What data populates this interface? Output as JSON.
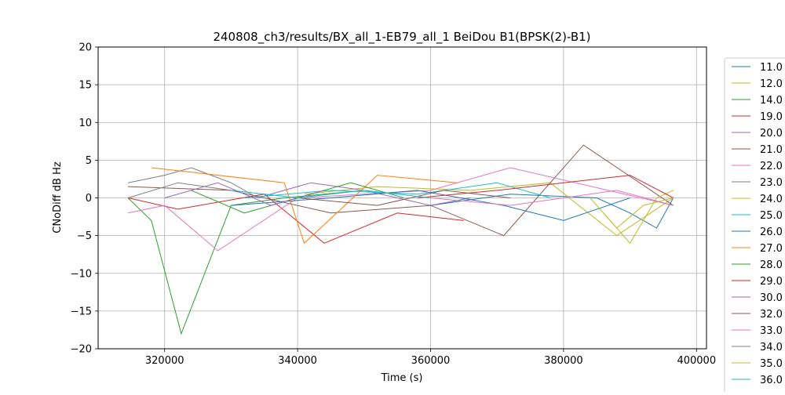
{
  "chart_data": {
    "type": "line",
    "title": "240808_ch3/results/BX_all_1-EB79_all_1 BeiDou B1(BPSK(2)-B1)",
    "xlabel": "Time (s)",
    "ylabel": "CNoDiff dB Hz",
    "xlim": [
      310000,
      401500
    ],
    "ylim": [
      -20,
      20
    ],
    "x_ticks": [
      320000,
      340000,
      360000,
      380000,
      400000
    ],
    "y_ticks": [
      -20,
      -15,
      -10,
      -5,
      0,
      5,
      10,
      15,
      20
    ],
    "grid": true,
    "legend_position": "right, outside plot",
    "series": [
      {
        "name": "11.0",
        "color": "#1f77b4",
        "x": [
          360000,
          372000,
          385000,
          390000,
          394000,
          396500
        ],
        "y": [
          -1,
          0.5,
          0,
          -2,
          -4,
          0
        ]
      },
      {
        "name": "12.0",
        "color": "#bcbd22",
        "x": [
          341000,
          352000,
          366000,
          378000,
          388000,
          396500
        ],
        "y": [
          0.5,
          1.5,
          1,
          2,
          -5,
          0
        ]
      },
      {
        "name": "14.0",
        "color": "#2ca02c",
        "x": [
          314500,
          318000,
          322500,
          330000,
          338000,
          350000
        ],
        "y": [
          0,
          -3,
          -18,
          -1,
          0,
          1
        ]
      },
      {
        "name": "19.0",
        "color": "#d62728",
        "x": [
          314500,
          322000,
          335000,
          344000,
          355000,
          365000
        ],
        "y": [
          0,
          -1.5,
          0.5,
          -6,
          -2,
          -3
        ]
      },
      {
        "name": "20.0",
        "color": "#9467bd",
        "x": [
          334000,
          342000,
          350000,
          360000,
          366000
        ],
        "y": [
          0,
          2,
          1,
          -1,
          0
        ]
      },
      {
        "name": "21.0",
        "color": "#8c564b",
        "x": [
          314500,
          330000,
          345000,
          360000,
          371000,
          383000,
          396500
        ],
        "y": [
          1.5,
          1,
          -2,
          -1,
          -5,
          7,
          -1
        ]
      },
      {
        "name": "22.0",
        "color": "#e377c2",
        "x": [
          314500,
          320000,
          328000,
          340000,
          360000,
          372000,
          396500
        ],
        "y": [
          -2,
          -1,
          -7,
          0,
          1,
          4,
          -1
        ]
      },
      {
        "name": "23.0",
        "color": "#7f7f7f",
        "x": [
          314500,
          320000,
          324000,
          330000,
          334000
        ],
        "y": [
          2,
          3,
          4,
          2,
          0
        ]
      },
      {
        "name": "24.0",
        "color": "#bcbd22",
        "x": [
          386000,
          390000,
          394000,
          396500
        ],
        "y": [
          -2,
          -6,
          0,
          1
        ]
      },
      {
        "name": "25.0",
        "color": "#17becf",
        "x": [
          332000,
          345000,
          358000,
          370000,
          378000
        ],
        "y": [
          0,
          1,
          0.5,
          2,
          0
        ]
      },
      {
        "name": "26.0",
        "color": "#1f77b4",
        "x": [
          330000,
          345000,
          358000,
          371000,
          380000,
          390000
        ],
        "y": [
          -1,
          0,
          1,
          -1,
          -3,
          0
        ]
      },
      {
        "name": "27.0",
        "color": "#ff7f0e",
        "x": [
          318000,
          338000,
          341000,
          352000,
          364000
        ],
        "y": [
          4,
          2,
          -6,
          3,
          2
        ]
      },
      {
        "name": "28.0",
        "color": "#2ca02c",
        "x": [
          324000,
          332000,
          340000,
          348000,
          356000
        ],
        "y": [
          1,
          -2,
          0,
          2,
          0
        ]
      },
      {
        "name": "29.0",
        "color": "#d62728",
        "x": [
          358000,
          370000,
          380000,
          390000,
          396500
        ],
        "y": [
          0,
          1,
          2,
          3,
          0
        ]
      },
      {
        "name": "30.0",
        "color": "#9467bd",
        "x": [
          320000,
          328000,
          336000,
          344000
        ],
        "y": [
          0,
          2,
          -1,
          1
        ]
      },
      {
        "name": "32.0",
        "color": "#8c564b",
        "x": [
          340000,
          352000,
          362000,
          372000
        ],
        "y": [
          0,
          -1,
          1,
          0
        ]
      },
      {
        "name": "33.0",
        "color": "#e377c2",
        "x": [
          360000,
          372000,
          380000,
          388000,
          396500
        ],
        "y": [
          0,
          -1,
          0,
          1,
          -1
        ]
      },
      {
        "name": "34.0",
        "color": "#7f7f7f",
        "x": [
          314500,
          322000,
          330000
        ],
        "y": [
          0,
          2,
          1
        ]
      },
      {
        "name": "35.0",
        "color": "#bcbd22",
        "x": [
          384000,
          388000,
          392000,
          396500
        ],
        "y": [
          0,
          -4,
          -1,
          0
        ]
      },
      {
        "name": "36.0",
        "color": "#17becf",
        "x": [
          330000,
          340000,
          350000,
          360000
        ],
        "y": [
          1,
          0,
          1,
          0
        ]
      }
    ]
  }
}
